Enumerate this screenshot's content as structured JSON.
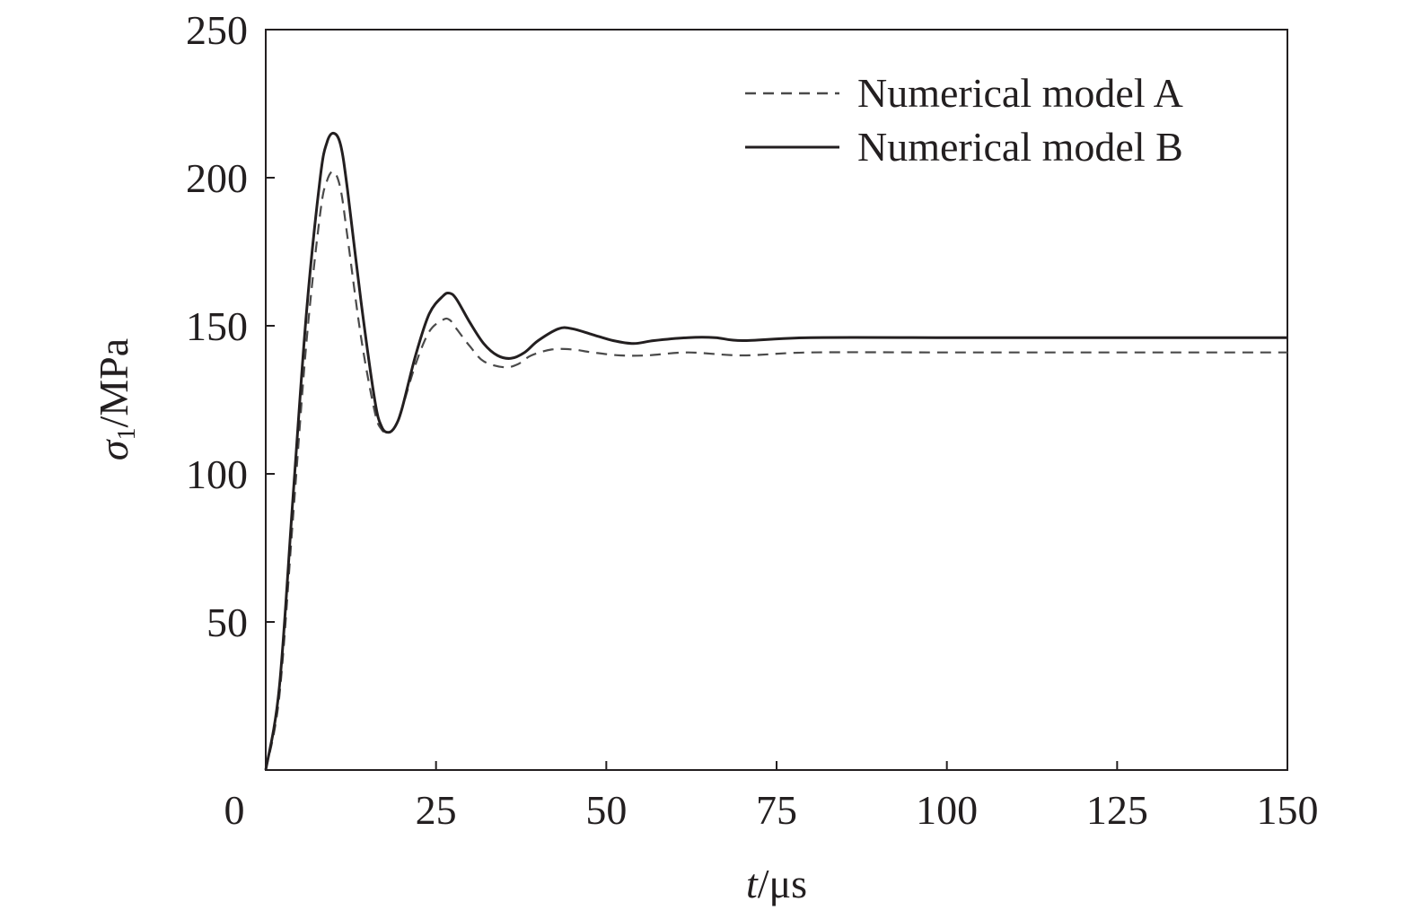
{
  "chart_data": {
    "type": "line",
    "xlabel": {
      "var": "t",
      "unit": "/μs"
    },
    "ylabel": {
      "var": "σ",
      "sub": "1",
      "unit": "/MPa"
    },
    "xlim": [
      0,
      150
    ],
    "ylim": [
      0,
      250
    ],
    "x_ticks": [
      "0",
      "25",
      "50",
      "75",
      "100",
      "125",
      "150"
    ],
    "x_tick_values": [
      0,
      25,
      50,
      75,
      100,
      125,
      150
    ],
    "y_ticks": [
      "50",
      "100",
      "150",
      "200",
      "250"
    ],
    "y_tick_values": [
      50,
      100,
      150,
      200,
      250
    ],
    "grid": false,
    "legend_position": "top-right",
    "series": [
      {
        "name": "Numerical model A",
        "style": "dashed",
        "color": "#4a4a4a",
        "points": [
          [
            0,
            0
          ],
          [
            2,
            25
          ],
          [
            4,
            85
          ],
          [
            6,
            145
          ],
          [
            8,
            188
          ],
          [
            9,
            199
          ],
          [
            10,
            202
          ],
          [
            11,
            196
          ],
          [
            12,
            180
          ],
          [
            14,
            146
          ],
          [
            16,
            121
          ],
          [
            17,
            115
          ],
          [
            18,
            114
          ],
          [
            19,
            116
          ],
          [
            20,
            122
          ],
          [
            22,
            137
          ],
          [
            24,
            148
          ],
          [
            26,
            152
          ],
          [
            27,
            152
          ],
          [
            28,
            149
          ],
          [
            30,
            143
          ],
          [
            32,
            138
          ],
          [
            35,
            136
          ],
          [
            37,
            137
          ],
          [
            39,
            140
          ],
          [
            42,
            142
          ],
          [
            45,
            142
          ],
          [
            48,
            141
          ],
          [
            52,
            140
          ],
          [
            56,
            140
          ],
          [
            62,
            141
          ],
          [
            70,
            140
          ],
          [
            80,
            141
          ],
          [
            100,
            141
          ],
          [
            120,
            141
          ],
          [
            150,
            141
          ]
        ]
      },
      {
        "name": "Numerical model B",
        "style": "solid",
        "color": "#231f20",
        "points": [
          [
            0,
            0
          ],
          [
            2,
            28
          ],
          [
            4,
            92
          ],
          [
            6,
            155
          ],
          [
            8,
            200
          ],
          [
            9,
            212
          ],
          [
            10,
            215
          ],
          [
            11,
            211
          ],
          [
            12,
            196
          ],
          [
            14,
            158
          ],
          [
            16,
            125
          ],
          [
            17,
            116
          ],
          [
            18,
            114
          ],
          [
            19,
            116
          ],
          [
            20,
            122
          ],
          [
            22,
            140
          ],
          [
            24,
            154
          ],
          [
            26,
            160
          ],
          [
            27,
            161
          ],
          [
            28,
            159
          ],
          [
            30,
            151
          ],
          [
            32,
            144
          ],
          [
            34,
            140
          ],
          [
            36,
            139
          ],
          [
            38,
            141
          ],
          [
            40,
            145
          ],
          [
            43,
            149
          ],
          [
            45,
            149
          ],
          [
            48,
            147
          ],
          [
            51,
            145
          ],
          [
            54,
            144
          ],
          [
            57,
            145
          ],
          [
            62,
            146
          ],
          [
            66,
            146
          ],
          [
            70,
            145
          ],
          [
            80,
            146
          ],
          [
            100,
            146
          ],
          [
            120,
            146
          ],
          [
            150,
            146
          ]
        ]
      }
    ]
  }
}
